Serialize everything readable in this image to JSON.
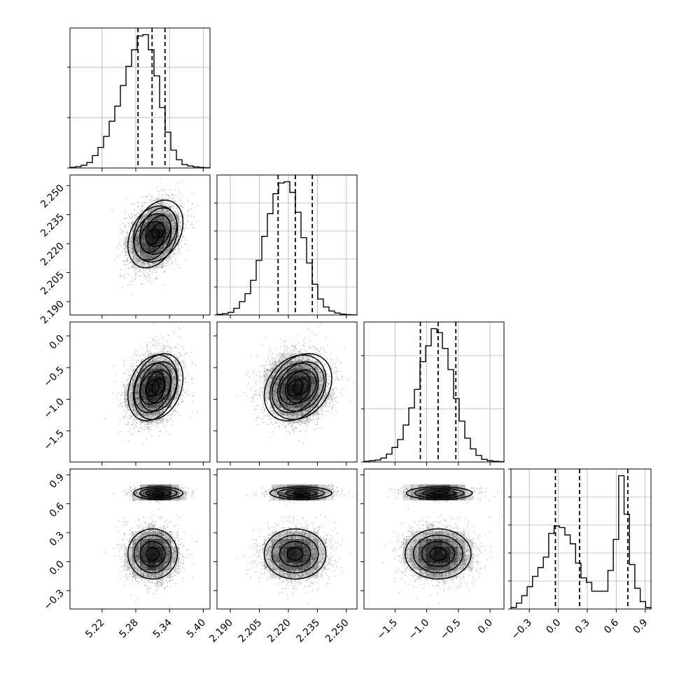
{
  "chart_data": {
    "type": "corner",
    "variables": [
      {
        "range": [
          5.163,
          5.412
        ],
        "ticks": [
          5.22,
          5.28,
          5.34,
          5.4
        ],
        "tick_labels": [
          "5.22",
          "5.28",
          "5.34",
          "5.40"
        ],
        "quantiles": [
          5.284,
          5.309,
          5.332
        ],
        "hist": [
          0.5,
          1,
          2,
          4,
          9,
          15,
          23,
          34,
          45,
          60,
          74,
          86,
          96,
          97,
          86,
          67,
          44,
          26,
          13,
          6,
          2.5,
          1.5,
          0.8,
          0.4,
          0.2
        ]
      },
      {
        "range": [
          2.1831,
          2.2555
        ],
        "ticks": [
          2.19,
          2.205,
          2.22,
          2.235,
          2.25
        ],
        "tick_labels": [
          "2.190",
          "2.205",
          "2.220",
          "2.235",
          "2.250"
        ],
        "quantiles": [
          2.2147,
          2.2236,
          2.2324
        ],
        "hist": [
          0.5,
          1,
          2,
          5,
          10,
          16,
          26,
          41,
          59,
          76,
          91,
          99,
          100,
          92,
          77,
          58,
          39,
          23,
          12,
          6,
          3,
          1.5,
          0.7,
          0.3,
          0.1
        ]
      },
      {
        "range": [
          -1.99,
          0.22
        ],
        "ticks": [
          -1.5,
          -1.0,
          -0.5,
          0.0
        ],
        "tick_labels": [
          "−1.5",
          "−1.0",
          "−0.5",
          "0.0"
        ],
        "quantiles": [
          -1.1,
          -0.82,
          -0.54
        ],
        "hist": [
          0.5,
          1,
          1.5,
          3,
          6,
          11,
          17,
          28,
          41,
          55,
          76,
          88,
          101,
          98,
          86,
          70,
          48,
          31,
          18,
          10,
          5,
          2,
          1,
          0.5,
          0.3
        ]
      },
      {
        "range": [
          -0.49,
          0.96
        ],
        "ticks": [
          -0.3,
          0.0,
          0.3,
          0.6,
          0.9
        ],
        "tick_labels": [
          "−0.3",
          "0.0",
          "0.3",
          "0.6",
          "0.9"
        ],
        "quantiles": [
          -0.03,
          0.22,
          0.72
        ],
        "hist": [
          1,
          4,
          9,
          15,
          22,
          28,
          35,
          51,
          56,
          55,
          50,
          44,
          31,
          21,
          18,
          12,
          12,
          12,
          26,
          47,
          90,
          64,
          30,
          14,
          5,
          1
        ]
      }
    ],
    "y_ticks_hist": [
      [
        0,
        0.36,
        0.72
      ],
      [
        0,
        0.2,
        0.4,
        0.6,
        0.8
      ],
      [
        0,
        0.38,
        0.76
      ],
      [
        0,
        0.2,
        0.4,
        0.6,
        0.8,
        1.0
      ]
    ],
    "components": [
      {
        "mean": [
          5.31,
          2.2235,
          -0.82,
          0.08
        ],
        "sd": [
          0.022,
          0.008,
          0.26,
          0.13
        ],
        "weight": 0.72
      },
      {
        "mean": [
          5.32,
          2.2265,
          -0.8,
          0.71
        ],
        "sd": [
          0.022,
          0.008,
          0.26,
          0.033
        ],
        "weight": 0.28
      }
    ],
    "correlation_01": 0.28,
    "correlation_02": 0.25,
    "correlation_12": 0.25,
    "grid": true,
    "colors": {
      "line": "#000000",
      "grid": "#b0b0b0",
      "density": "#000000",
      "points": "#7a7a7a"
    }
  }
}
